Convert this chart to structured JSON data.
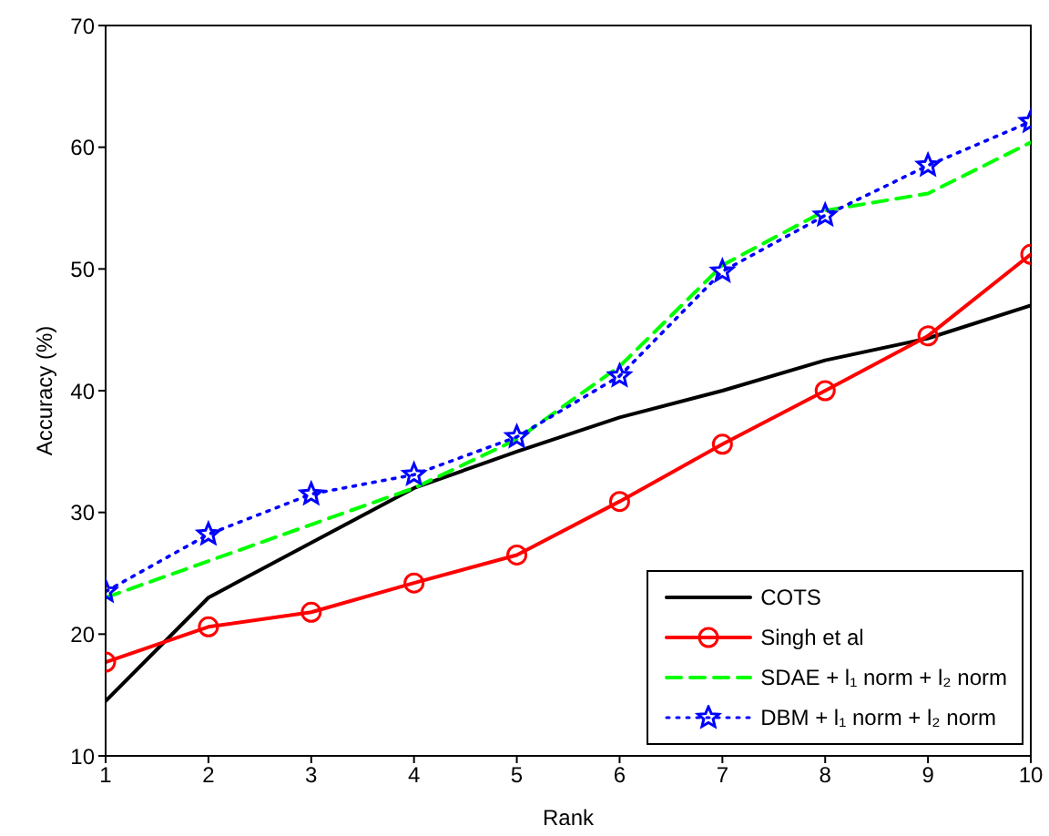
{
  "chart_data": {
    "type": "line",
    "xlabel": "Rank",
    "ylabel": "Accuracy (%)",
    "x": [
      1,
      2,
      3,
      4,
      5,
      6,
      7,
      8,
      9,
      10
    ],
    "xlim": [
      1,
      10
    ],
    "xticks": [
      1,
      2,
      3,
      4,
      5,
      6,
      7,
      8,
      9,
      10
    ],
    "ylim": [
      10,
      70
    ],
    "yticks": [
      10,
      20,
      30,
      40,
      50,
      60,
      70
    ],
    "grid": false,
    "legend": "bottom right",
    "series": [
      {
        "name": "COTS",
        "color": "#000000",
        "marker": "none",
        "line_style": "solid",
        "values": [
          14.5,
          23,
          27.5,
          32,
          35,
          37.8,
          40,
          42.5,
          44.3,
          47
        ]
      },
      {
        "name": "Singh et al",
        "color": "#ff0000",
        "marker": "circle",
        "line_style": "solid",
        "values": [
          17.7,
          20.6,
          21.8,
          24.2,
          26.5,
          30.9,
          35.6,
          40,
          44.5,
          51.2
        ]
      },
      {
        "name": "SDAE + l₁ norm + l₂ norm",
        "color": "#00ff00",
        "marker": "none",
        "line_style": "dashed",
        "values": [
          23,
          26,
          29,
          32,
          36,
          42,
          50.3,
          54.8,
          56.2,
          60.4
        ]
      },
      {
        "name": "DBM + l₁ norm + l₂ norm",
        "color": "#0000ff",
        "marker": "star",
        "line_style": "dotted",
        "values": [
          23.5,
          28.2,
          31.5,
          33.1,
          36.2,
          41.2,
          49.8,
          54.4,
          58.5,
          62.1
        ]
      }
    ]
  }
}
